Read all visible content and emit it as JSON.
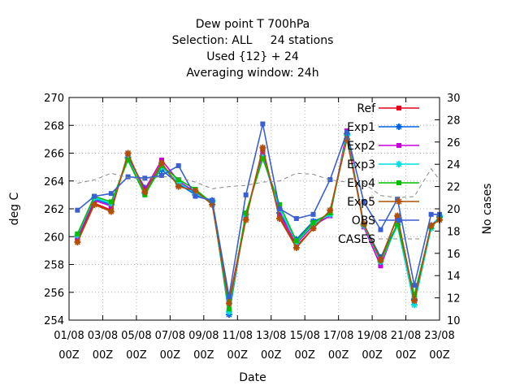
{
  "chart_data": {
    "type": "line",
    "title_lines": [
      "Dew point T 700hPa",
      "Selection: ALL     24 stations",
      "Used {12} + 24",
      "Averaging window: 24h"
    ],
    "xlabel": "Date",
    "ylabel": "deg C",
    "y2label": "No cases",
    "ylim": [
      254,
      270
    ],
    "y2lim": [
      10,
      30
    ],
    "yticks": [
      "254",
      "256",
      "258",
      "260",
      "262",
      "264",
      "266",
      "268",
      "270"
    ],
    "y2ticks": [
      "10",
      "12",
      "14",
      "16",
      "18",
      "20",
      "22",
      "24",
      "26",
      "28",
      "30"
    ],
    "xticks": [
      {
        "day": 0,
        "top": "01/08",
        "bottom": "00Z"
      },
      {
        "day": 2,
        "top": "03/08",
        "bottom": "00Z"
      },
      {
        "day": 4,
        "top": "05/08",
        "bottom": "00Z"
      },
      {
        "day": 6,
        "top": "07/08",
        "bottom": "00Z"
      },
      {
        "day": 8,
        "top": "09/08",
        "bottom": "00Z"
      },
      {
        "day": 10,
        "top": "11/08",
        "bottom": "00Z"
      },
      {
        "day": 12,
        "top": "13/08",
        "bottom": "00Z"
      },
      {
        "day": 14,
        "top": "15/08",
        "bottom": "00Z"
      },
      {
        "day": 16,
        "top": "17/08",
        "bottom": "00Z"
      },
      {
        "day": 18,
        "top": "19/08",
        "bottom": "00Z"
      },
      {
        "day": 20,
        "top": "21/08",
        "bottom": "00Z"
      },
      {
        "day": 22,
        "top": "23/08",
        "bottom": "00Z"
      }
    ],
    "xlim": [
      0,
      22
    ],
    "grid": true,
    "legend_position": "top-right",
    "x": [
      0.5,
      1.5,
      2.5,
      3.5,
      4.5,
      5.5,
      6.5,
      7.5,
      8.5,
      9.5,
      10.5,
      11.5,
      12.5,
      13.5,
      14.5,
      15.5,
      16.5,
      17.5,
      18.5,
      19.5,
      20.5,
      21.5,
      22.0
    ],
    "series": [
      {
        "name": "Ref",
        "color": "#e8001a",
        "marker": "square",
        "values": [
          259.7,
          262.4,
          261.9,
          265.9,
          263.3,
          265.2,
          263.7,
          263.3,
          262.4,
          255.3,
          261.4,
          266.3,
          261.4,
          259.3,
          260.6,
          261.8,
          267.2,
          260.9,
          258.4,
          261.4,
          255.6,
          260.8,
          261.3
        ]
      },
      {
        "name": "Exp1",
        "color": "#0064e8",
        "marker": "star",
        "values": [
          260.0,
          262.7,
          262.3,
          265.7,
          263.5,
          264.8,
          263.8,
          263.0,
          262.6,
          254.4,
          261.6,
          265.8,
          261.7,
          259.8,
          261.1,
          261.6,
          267.4,
          260.9,
          258.5,
          260.9,
          255.5,
          260.8,
          261.4
        ]
      },
      {
        "name": "Exp2",
        "color": "#c800d8",
        "marker": "square",
        "values": [
          259.9,
          262.6,
          262.2,
          265.8,
          263.4,
          265.5,
          264.0,
          263.2,
          262.5,
          254.7,
          261.5,
          266.0,
          261.6,
          259.5,
          260.8,
          261.5,
          267.6,
          260.7,
          257.9,
          261.0,
          255.3,
          260.7,
          261.4
        ]
      },
      {
        "name": "Exp3",
        "color": "#00e0e0",
        "marker": "star",
        "values": [
          260.1,
          262.8,
          262.4,
          265.6,
          263.1,
          265.0,
          263.9,
          263.1,
          262.5,
          254.6,
          261.6,
          265.7,
          262.0,
          259.6,
          260.9,
          261.6,
          267.3,
          260.8,
          258.2,
          260.8,
          255.1,
          260.6,
          261.5
        ]
      },
      {
        "name": "Exp4",
        "color": "#00c000",
        "marker": "square",
        "values": [
          260.2,
          262.9,
          262.5,
          265.5,
          263.0,
          265.1,
          264.1,
          263.4,
          262.4,
          254.8,
          261.7,
          265.6,
          262.3,
          259.7,
          261.0,
          261.7,
          267.1,
          260.9,
          258.3,
          260.9,
          255.8,
          260.7,
          261.3
        ]
      },
      {
        "name": "Exp5",
        "color": "#b05000",
        "marker": "star",
        "values": [
          259.6,
          262.3,
          261.8,
          266.0,
          263.2,
          265.3,
          263.6,
          263.3,
          262.3,
          255.2,
          261.2,
          266.4,
          261.3,
          259.2,
          260.6,
          261.9,
          267.0,
          260.9,
          258.3,
          261.5,
          255.4,
          260.8,
          261.2
        ]
      },
      {
        "name": "OBS",
        "color": "#3a5fd0",
        "marker": "square",
        "values": [
          261.9,
          262.9,
          263.1,
          264.3,
          264.2,
          264.4,
          265.1,
          262.9,
          262.6,
          255.7,
          263.0,
          268.1,
          262.0,
          261.3,
          261.6,
          264.1,
          267.5,
          262.5,
          260.5,
          262.7,
          256.5,
          261.6,
          261.6
        ]
      },
      {
        "name": "CASES",
        "color": "#888888",
        "dashed": true,
        "axis": "y2",
        "values": [
          22.3,
          22.6,
          23.2,
          22.8,
          22.7,
          22.9,
          22.8,
          22.4,
          21.8,
          22.0,
          22.1,
          22.4,
          22.5,
          23.2,
          23.1,
          22.6,
          22.4,
          22.3,
          21.2,
          21.0,
          21.1,
          23.6,
          22.6
        ]
      }
    ]
  }
}
